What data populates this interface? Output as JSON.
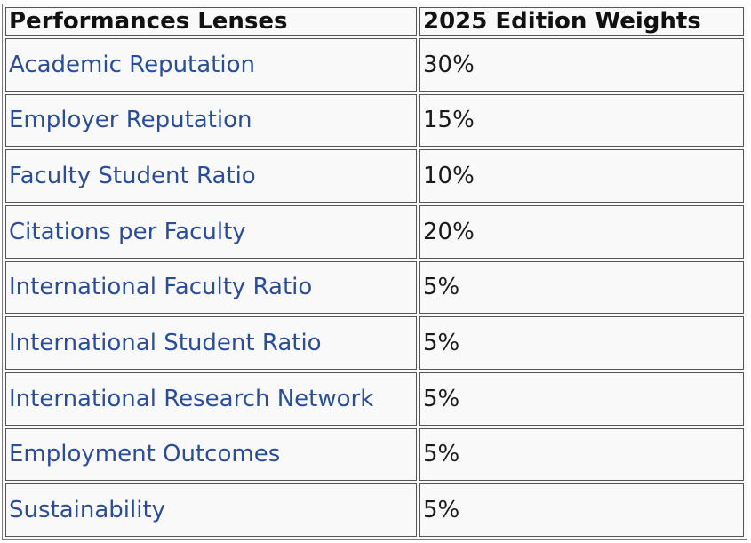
{
  "table": {
    "headers": [
      "Performances Lenses",
      "2025 Edition Weights"
    ],
    "rows": [
      {
        "lens": "Academic Reputation",
        "weight": "30%"
      },
      {
        "lens": "Employer Reputation",
        "weight": "15%"
      },
      {
        "lens": "Faculty Student Ratio",
        "weight": "10%"
      },
      {
        "lens": "Citations per Faculty",
        "weight": "20%"
      },
      {
        "lens": "International Faculty Ratio",
        "weight": "5%"
      },
      {
        "lens": "International Student Ratio",
        "weight": "5%"
      },
      {
        "lens": "International Research Network",
        "weight": "5%"
      },
      {
        "lens": "Employment Outcomes",
        "weight": "5%"
      },
      {
        "lens": "Sustainability",
        "weight": "5%"
      }
    ]
  },
  "colors": {
    "link": "#2a4d9a",
    "text": "#1a1a1a",
    "border": "#555555",
    "cell_bg": "#f9f9fa"
  }
}
